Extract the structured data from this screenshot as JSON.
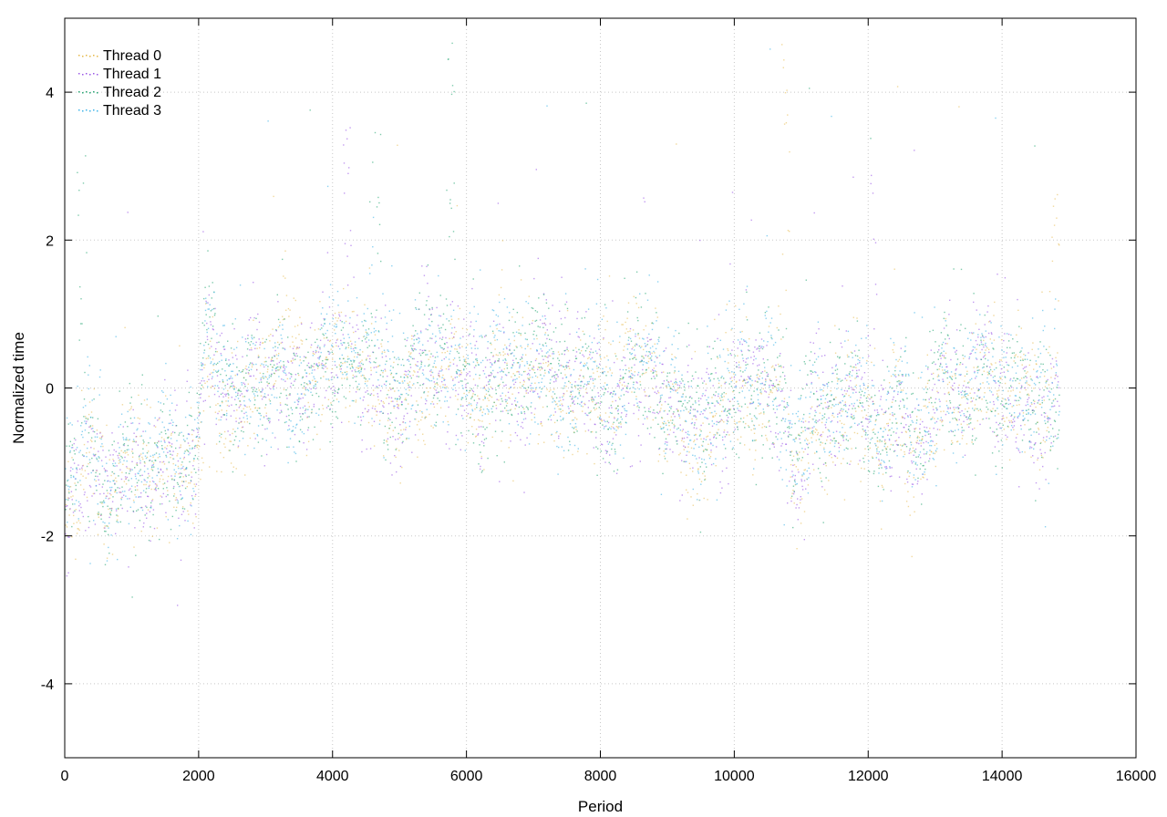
{
  "chart_data": {
    "type": "scatter",
    "title": "",
    "xlabel": "Period",
    "ylabel": "Normalized time",
    "xlim": [
      0,
      16000
    ],
    "ylim": [
      -5,
      5
    ],
    "xticks": [
      0,
      2000,
      4000,
      6000,
      8000,
      10000,
      12000,
      14000,
      16000
    ],
    "yticks": [
      -4,
      -2,
      0,
      2,
      4
    ],
    "grid": true,
    "legend_position": "top-left",
    "point_count_per_series": 14850,
    "series": [
      {
        "name": "Thread 0",
        "color": "#e6b84a"
      },
      {
        "name": "Thread 1",
        "color": "#9b59e6"
      },
      {
        "name": "Thread 2",
        "color": "#2aa876"
      },
      {
        "name": "Thread 3",
        "color": "#3fb4e8"
      }
    ],
    "trend": {
      "x": [
        0,
        200,
        400,
        600,
        800,
        1000,
        1200,
        1400,
        1600,
        1800,
        1950,
        2000,
        2100,
        2200,
        2400,
        2600,
        2800,
        3000,
        3200,
        3400,
        3600,
        3800,
        4000,
        4200,
        4400,
        4600,
        4800,
        5000,
        5200,
        5400,
        5600,
        5800,
        6000,
        6200,
        6400,
        6600,
        6800,
        7000,
        7200,
        7400,
        7600,
        7800,
        8000,
        8200,
        8400,
        8600,
        8800,
        9000,
        9200,
        9400,
        9600,
        9800,
        10000,
        10200,
        10400,
        10600,
        10800,
        10900,
        11000,
        11100,
        11200,
        11400,
        11600,
        11800,
        12000,
        12200,
        12400,
        12600,
        12800,
        13000,
        13200,
        13400,
        13600,
        13800,
        14000,
        14200,
        14400,
        14600,
        14850
      ],
      "y": [
        -1.2,
        -1.3,
        -0.6,
        -1.5,
        -1.3,
        -1.1,
        -1.2,
        -1.0,
        -1.2,
        -1.1,
        -0.9,
        -0.3,
        0.5,
        0.4,
        0.0,
        -0.2,
        0.1,
        -0.1,
        0.3,
        -0.1,
        0.1,
        0.3,
        0.4,
        0.6,
        0.2,
        0.2,
        0.1,
        -0.3,
        0.3,
        0.2,
        0.4,
        0.3,
        0.1,
        -0.2,
        0.1,
        0.0,
        -0.1,
        0.2,
        0.1,
        0.0,
        0.1,
        0.2,
        0.0,
        -0.2,
        0.2,
        0.2,
        0.1,
        -0.2,
        -0.3,
        -0.6,
        -0.4,
        -0.3,
        0.1,
        0.1,
        -0.2,
        0.0,
        -0.5,
        -0.9,
        -0.8,
        -0.6,
        -0.2,
        -0.3,
        -0.2,
        -0.1,
        -0.5,
        -0.7,
        -0.4,
        -0.6,
        -0.7,
        -0.1,
        0.0,
        0.0,
        0.1,
        0.1,
        -0.1,
        0.1,
        -0.4,
        -0.2,
        -0.2
      ]
    },
    "spikes": [
      {
        "x": 5750,
        "series": "Thread 2",
        "peak": 5.0
      },
      {
        "x": 10750,
        "series": "Thread 0",
        "peak": 5.0
      },
      {
        "x": 12050,
        "series": "Thread 1",
        "peak": 3.4
      },
      {
        "x": 4650,
        "series": "Thread 2",
        "peak": 4.2
      },
      {
        "x": 4200,
        "series": "Thread 1",
        "peak": 3.6
      },
      {
        "x": 250,
        "series": "Thread 2",
        "peak": 3.4
      },
      {
        "x": 14800,
        "series": "Thread 0",
        "peak": 3.2
      }
    ]
  }
}
